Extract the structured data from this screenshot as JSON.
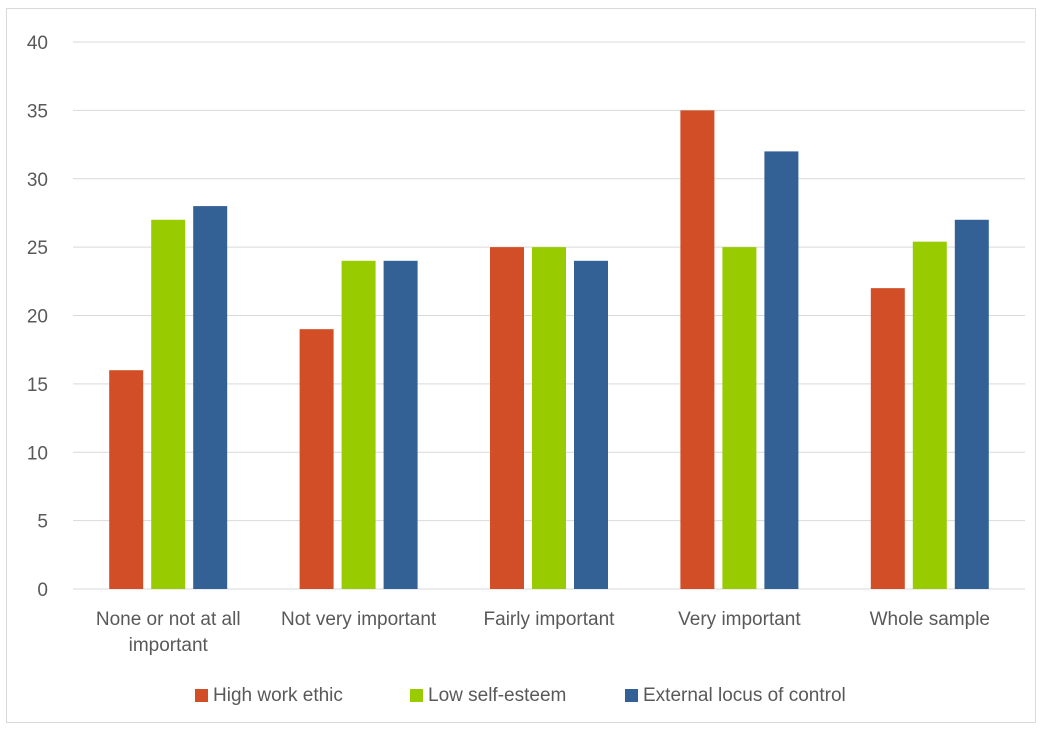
{
  "chart_data": {
    "type": "bar",
    "title": "",
    "xlabel": "",
    "ylabel": "",
    "ylim": [
      0,
      40
    ],
    "yticks": [
      "0",
      "5",
      "10",
      "15",
      "20",
      "25",
      "30",
      "35",
      "40"
    ],
    "grid": true,
    "legend_position": "bottom",
    "categories": [
      [
        "None or not at all",
        "important"
      ],
      [
        "Not very important"
      ],
      [
        "Fairly important"
      ],
      [
        "Very important"
      ],
      [
        "Whole sample"
      ]
    ],
    "series": [
      {
        "name": "High work ethic",
        "color": "#d24e26",
        "values": [
          16,
          19,
          25,
          35,
          22
        ]
      },
      {
        "name": "Low self-esteem",
        "color": "#99cc00",
        "values": [
          27,
          24,
          25,
          25,
          25.4
        ]
      },
      {
        "name": "External locus of control",
        "color": "#336195",
        "values": [
          28,
          24,
          24,
          32,
          27
        ]
      }
    ]
  }
}
